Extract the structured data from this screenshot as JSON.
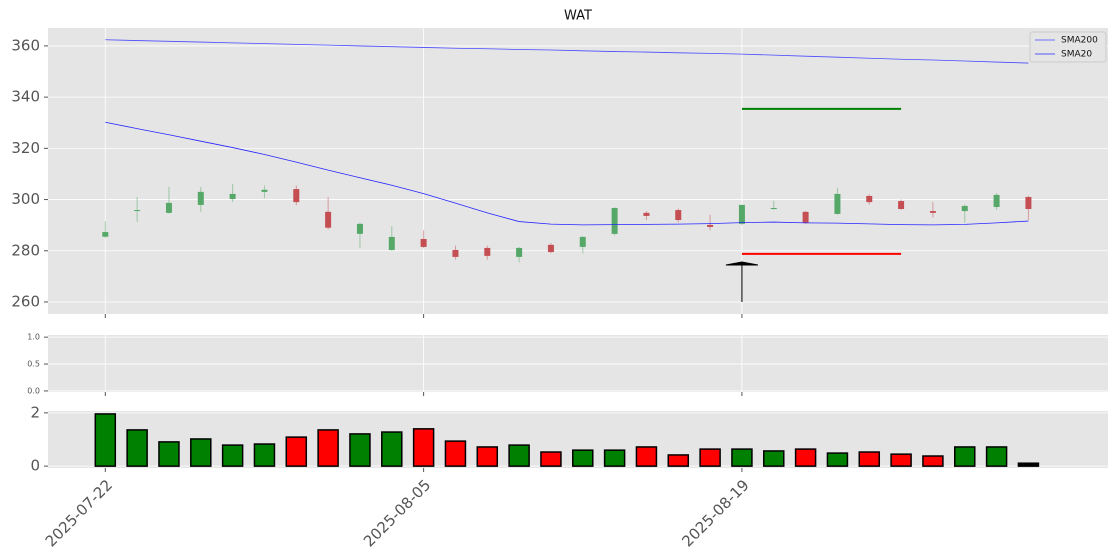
{
  "chart_data": [
    {
      "type": "candlestick",
      "title": "WAT",
      "open": [
        285.5,
        295.6,
        294.8,
        297.9,
        300.2,
        303.0,
        304.1,
        295.2,
        286.6,
        280.3,
        284.6,
        280.3,
        281.1,
        277.6,
        282.3,
        281.5,
        286.6,
        294.8,
        295.9,
        290.1,
        290.5,
        296.3,
        295.2,
        294.4,
        301.4,
        299.4,
        295.5,
        295.5,
        297.1,
        301.0
      ],
      "high": [
        291.5,
        301.0,
        305.0,
        304.9,
        306.0,
        305.5,
        305.5,
        301.0,
        291.0,
        289.6,
        288.0,
        282.0,
        282.0,
        281.5,
        283.0,
        285.8,
        297.0,
        295.5,
        296.5,
        294.0,
        298.0,
        299.5,
        295.5,
        304.5,
        302.0,
        300.0,
        299.0,
        298.0,
        302.5,
        301.5
      ],
      "low": [
        285.0,
        291.3,
        294.5,
        295.2,
        299.0,
        300.5,
        297.8,
        288.3,
        281.0,
        280.0,
        281.0,
        276.5,
        276.5,
        275.5,
        279.0,
        279.0,
        286.0,
        292.0,
        291.0,
        288.0,
        290.0,
        296.0,
        290.5,
        294.0,
        298.0,
        296.0,
        293.0,
        291.0,
        296.0,
        292.0
      ],
      "close": [
        287.3,
        295.9,
        298.7,
        303.0,
        302.2,
        303.8,
        299.0,
        289.0,
        290.5,
        285.4,
        281.5,
        277.6,
        278.0,
        281.1,
        279.5,
        285.4,
        296.7,
        293.6,
        292.0,
        289.3,
        297.9,
        296.7,
        290.9,
        302.2,
        299.0,
        296.3,
        294.8,
        297.5,
        301.8,
        296.3
      ],
      "up_color": "#55a868",
      "down_color": "#c44e52",
      "series": [
        {
          "name": "SMA200",
          "color": "#4a4aff",
          "values": [
            362.4,
            362.1,
            361.8,
            361.5,
            361.2,
            360.9,
            360.6,
            360.3,
            360.0,
            359.7,
            359.4,
            359.1,
            358.9,
            358.6,
            358.4,
            358.1,
            357.8,
            357.6,
            357.3,
            357.1,
            356.8,
            356.4,
            356.0,
            355.6,
            355.2,
            354.8,
            354.5,
            354.1,
            353.7,
            353.3
          ]
        },
        {
          "name": "SMA20",
          "color": "#2626ff",
          "values": [
            330.2,
            327.7,
            325.3,
            322.8,
            320.3,
            317.6,
            314.6,
            311.5,
            308.5,
            305.6,
            302.3,
            298.6,
            294.8,
            291.4,
            290.4,
            290.1,
            290.2,
            290.3,
            290.4,
            290.6,
            291.0,
            291.2,
            290.9,
            290.8,
            290.5,
            290.2,
            290.1,
            290.3,
            290.9,
            291.6
          ]
        }
      ],
      "levels": [
        {
          "y": 335.4,
          "x": [
            20,
            25
          ],
          "color": "#008000"
        },
        {
          "y": 278.8,
          "x": [
            20,
            25
          ],
          "color": "#ff0000"
        }
      ],
      "arrow": {
        "x": 20,
        "y": [
          260,
          275.6
        ],
        "color": "#000000"
      },
      "ylim": [
        255.3,
        367
      ],
      "yticks": [
        260,
        280,
        300,
        320,
        340,
        360
      ],
      "xlim": [
        -1.8,
        31.5
      ],
      "grid": true,
      "legend": "upper right"
    },
    {
      "type": "empty",
      "ylim": [
        -0.02,
        1.04
      ],
      "yticks": [
        {
          "value": 0,
          "label": "0.0"
        },
        {
          "value": 0.5,
          "label": "0.5"
        },
        {
          "value": 1,
          "label": "1.0"
        }
      ],
      "xlim": [
        -1.8,
        31.5
      ],
      "grid": true
    },
    {
      "type": "bar",
      "categories": [
        "2025-07-22",
        null,
        null,
        null,
        null,
        null,
        null,
        null,
        null,
        null,
        "2025-08-05",
        null,
        null,
        null,
        null,
        null,
        null,
        null,
        null,
        null,
        "2025-08-19",
        null,
        null,
        null,
        null,
        null,
        null,
        null,
        null,
        null
      ],
      "values": [
        1.96,
        1.36,
        0.91,
        1.02,
        0.79,
        0.83,
        1.09,
        1.36,
        1.21,
        1.28,
        1.4,
        0.94,
        0.72,
        0.79,
        0.53,
        0.6,
        0.6,
        0.72,
        0.42,
        0.64,
        0.64,
        0.57,
        0.64,
        0.49,
        0.53,
        0.45,
        0.38,
        0.72,
        0.72,
        0.11
      ],
      "colors": [
        "#008000",
        "#008000",
        "#008000",
        "#008000",
        "#008000",
        "#008000",
        "#ff0000",
        "#ff0000",
        "#008000",
        "#008000",
        "#ff0000",
        "#ff0000",
        "#ff0000",
        "#008000",
        "#ff0000",
        "#008000",
        "#008000",
        "#ff0000",
        "#ff0000",
        "#ff0000",
        "#008000",
        "#008000",
        "#ff0000",
        "#008000",
        "#ff0000",
        "#ff0000",
        "#ff0000",
        "#008000",
        "#008000",
        "#000000"
      ],
      "ylim": [
        -0.07,
        2.07
      ],
      "yticks": [
        0,
        2
      ],
      "xlim": [
        -1.8,
        31.5
      ],
      "grid": true
    }
  ]
}
